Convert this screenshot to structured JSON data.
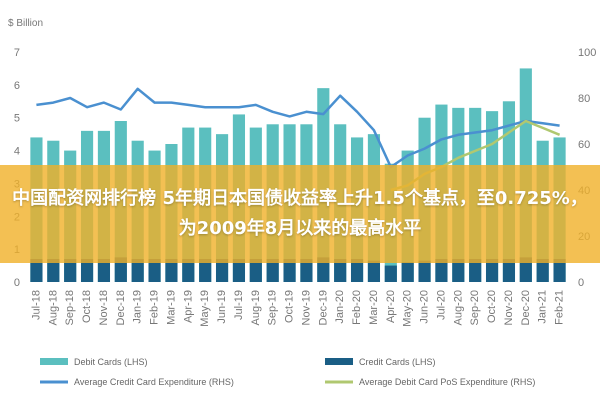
{
  "chart_data": {
    "type": "bar",
    "unit_label": "$ Billion",
    "categories": [
      "Jul-18",
      "Aug-18",
      "Sep-18",
      "Oct-18",
      "Nov-18",
      "Dec-18",
      "Jan-19",
      "Feb-19",
      "Mar-19",
      "Apr-19",
      "May-19",
      "Jun-19",
      "Jul-19",
      "Aug-19",
      "Sep-19",
      "Oct-19",
      "Nov-19",
      "Dec-19",
      "Jan-20",
      "Feb-20",
      "Mar-20",
      "Apr-20",
      "May-20",
      "Jun-20",
      "Jul-20",
      "Aug-20",
      "Sep-20",
      "Oct-20",
      "Nov-20",
      "Dec-20",
      "Jan-21",
      "Feb-21"
    ],
    "series": [
      {
        "name": "Debit Cards (LHS)",
        "kind": "bar",
        "axis": "left",
        "color": "#5bbfbf",
        "values": [
          4.4,
          4.3,
          4.0,
          4.6,
          4.6,
          4.9,
          4.3,
          4.0,
          4.2,
          4.7,
          4.7,
          4.5,
          5.1,
          4.7,
          4.8,
          4.8,
          4.8,
          5.9,
          4.8,
          4.4,
          4.5,
          3.6,
          4.0,
          5.0,
          5.4,
          5.3,
          5.3,
          5.2,
          5.5,
          6.5,
          4.3,
          4.4
        ]
      },
      {
        "name": "Credit Cards (LHS)",
        "kind": "bar",
        "axis": "left",
        "color": "#1a5e85",
        "values": [
          0.7,
          0.7,
          0.7,
          0.7,
          0.7,
          0.75,
          0.7,
          0.7,
          0.7,
          0.7,
          0.7,
          0.7,
          0.7,
          0.7,
          0.7,
          0.7,
          0.7,
          0.75,
          0.7,
          0.7,
          0.65,
          0.5,
          0.6,
          0.65,
          0.7,
          0.7,
          0.7,
          0.7,
          0.7,
          0.75,
          0.7,
          0.7
        ]
      },
      {
        "name": "Average Credit Card Expenditure (RHS)",
        "kind": "line",
        "axis": "right",
        "color": "#4a90d0",
        "values": [
          77,
          78,
          80,
          76,
          78,
          75,
          84,
          78,
          78,
          77,
          76,
          76,
          76,
          77,
          74,
          72,
          74,
          73,
          81,
          74,
          66,
          50,
          55,
          58,
          62,
          64,
          65,
          66,
          68,
          70,
          69,
          68
        ]
      },
      {
        "name": "Average Debit Card PoS Expenditure (RHS)",
        "kind": "line",
        "axis": "right",
        "color": "#b0c870",
        "values": [
          null,
          null,
          null,
          null,
          null,
          null,
          null,
          null,
          null,
          null,
          null,
          null,
          null,
          null,
          null,
          null,
          null,
          null,
          null,
          null,
          null,
          40,
          42,
          47,
          50,
          54,
          57,
          60,
          65,
          70,
          67,
          64
        ]
      }
    ],
    "ylim": [
      0,
      7
    ],
    "y_ticks": [
      0,
      1,
      2,
      3,
      4,
      5,
      6,
      7
    ],
    "y2lim": [
      0,
      100
    ],
    "y2_ticks": [
      0,
      20,
      40,
      60,
      80,
      100
    ],
    "grid": false,
    "legend": "bottom"
  },
  "overlay_headline": "中国配资网排行榜 5年期日本国债收益率上升1.5个基点，至0.725%，为2009年8月以来的最高水平"
}
